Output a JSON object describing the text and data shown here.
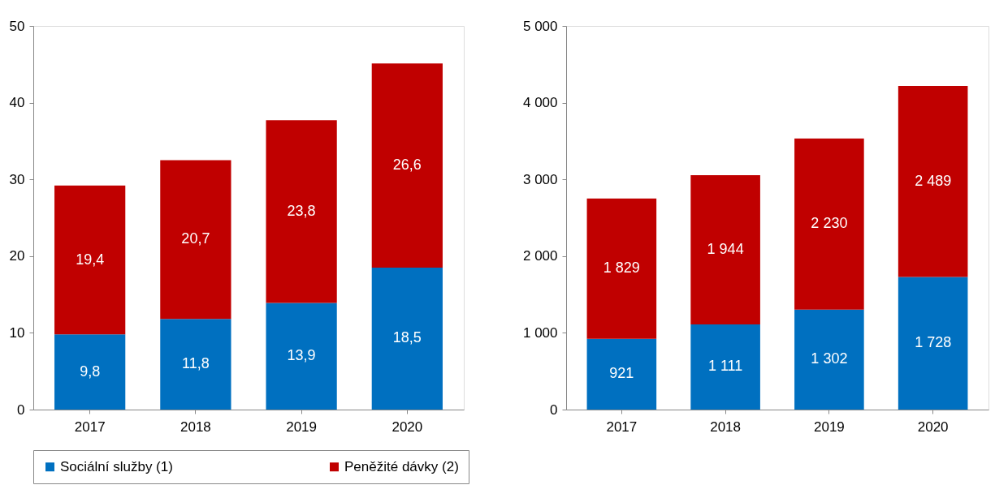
{
  "chart_data": [
    {
      "type": "bar",
      "stacked": true,
      "categories": [
        "2017",
        "2018",
        "2019",
        "2020"
      ],
      "series": [
        {
          "name": "Sociální služby (1)",
          "color": "#0070c0",
          "values": [
            9.8,
            11.8,
            13.9,
            18.5
          ],
          "value_labels": [
            "9,8",
            "11,8",
            "13,9",
            "18,5"
          ]
        },
        {
          "name": "Peněžité dávky (2)",
          "color": "#c00000",
          "values": [
            19.4,
            20.7,
            23.8,
            26.6
          ],
          "value_labels": [
            "19,4",
            "20,7",
            "23,8",
            "26,6"
          ]
        }
      ],
      "ylim": [
        0,
        50
      ],
      "yticks": [
        0,
        10,
        20,
        30,
        40,
        50
      ],
      "grid": false,
      "legend": "bottom"
    },
    {
      "type": "bar",
      "stacked": true,
      "categories": [
        "2017",
        "2018",
        "2019",
        "2020"
      ],
      "series": [
        {
          "name": "Sociální služby (1)",
          "color": "#0070c0",
          "values": [
            921,
            1111,
            1302,
            1728
          ],
          "value_labels": [
            "921",
            "1 111",
            "1 302",
            "1 728"
          ]
        },
        {
          "name": "Peněžité dávky (2)",
          "color": "#c00000",
          "values": [
            1829,
            1944,
            2230,
            2489
          ],
          "value_labels": [
            "1 829",
            "1 944",
            "2 230",
            "2 489"
          ]
        }
      ],
      "ylim": [
        0,
        5000
      ],
      "yticks": [
        0,
        {
          "value": 1000,
          "label": "1 000"
        },
        {
          "value": 2000,
          "label": "2 000"
        },
        {
          "value": 3000,
          "label": "3 000"
        },
        {
          "value": 4000,
          "label": "4 000"
        },
        {
          "value": 5000,
          "label": "5 000"
        }
      ],
      "grid": false,
      "legend": "bottom"
    }
  ]
}
